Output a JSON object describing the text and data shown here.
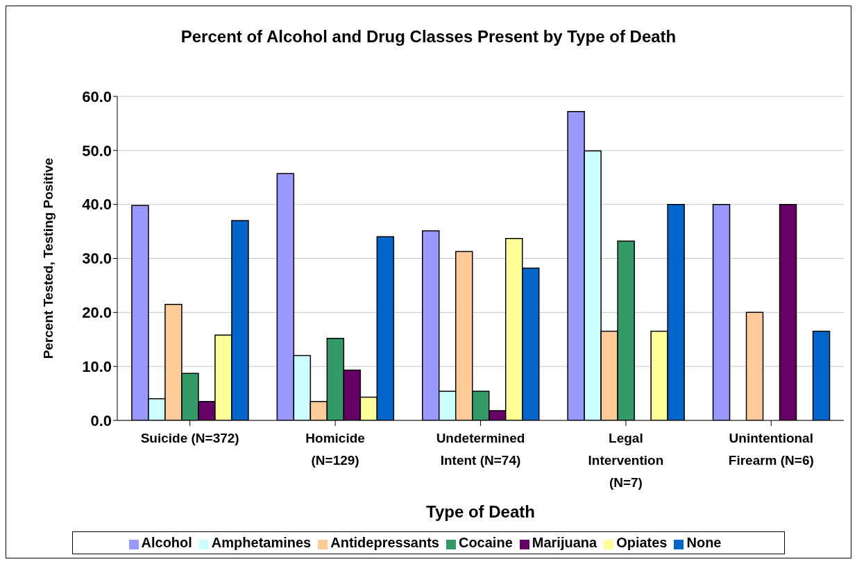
{
  "chart_data": {
    "type": "bar",
    "title": "Percent of Alcohol and Drug Classes Present by Type of Death",
    "xlabel": "Type of Death",
    "ylabel": "Percent Tested, Testing Positive",
    "categories": [
      "Suicide (N=372)",
      "Homicide (N=129)",
      "Undetermined Intent (N=74)",
      "Legal Intervention (N=7)",
      "Unintentional Firearm (N=6)"
    ],
    "series": [
      {
        "name": "Alcohol",
        "color": "#9999ff",
        "values": [
          39.8,
          45.7,
          35.1,
          57.2,
          40.0
        ]
      },
      {
        "name": "Amphetamines",
        "color": "#ccffff",
        "values": [
          4.0,
          12.0,
          5.4,
          49.9,
          0
        ]
      },
      {
        "name": "Antidepressants",
        "color": "#ffcc99",
        "values": [
          21.5,
          3.5,
          31.3,
          16.5,
          20.0
        ]
      },
      {
        "name": "Cocaine",
        "color": "#339966",
        "values": [
          8.7,
          15.2,
          5.4,
          33.2,
          0
        ]
      },
      {
        "name": "Marijuana",
        "color": "#660066",
        "values": [
          3.5,
          9.3,
          1.8,
          0,
          40.0
        ]
      },
      {
        "name": "Opiates",
        "color": "#ffff99",
        "values": [
          15.8,
          4.3,
          33.7,
          16.5,
          0
        ]
      },
      {
        "name": "None",
        "color": "#0066cc",
        "values": [
          37.0,
          34.0,
          28.2,
          40.0,
          16.5
        ]
      }
    ],
    "ylim": [
      0,
      60
    ],
    "yticks": [
      {
        "value": 0,
        "label": "0.0"
      },
      {
        "value": 10,
        "label": "10.0"
      },
      {
        "value": 20,
        "label": "20.0"
      },
      {
        "value": 30,
        "label": "30.0"
      },
      {
        "value": 40,
        "label": "40.0"
      },
      {
        "value": 50,
        "label": "50.0"
      },
      {
        "value": 60,
        "label": "60.0"
      }
    ],
    "grid": "y",
    "legend": "bottom"
  }
}
